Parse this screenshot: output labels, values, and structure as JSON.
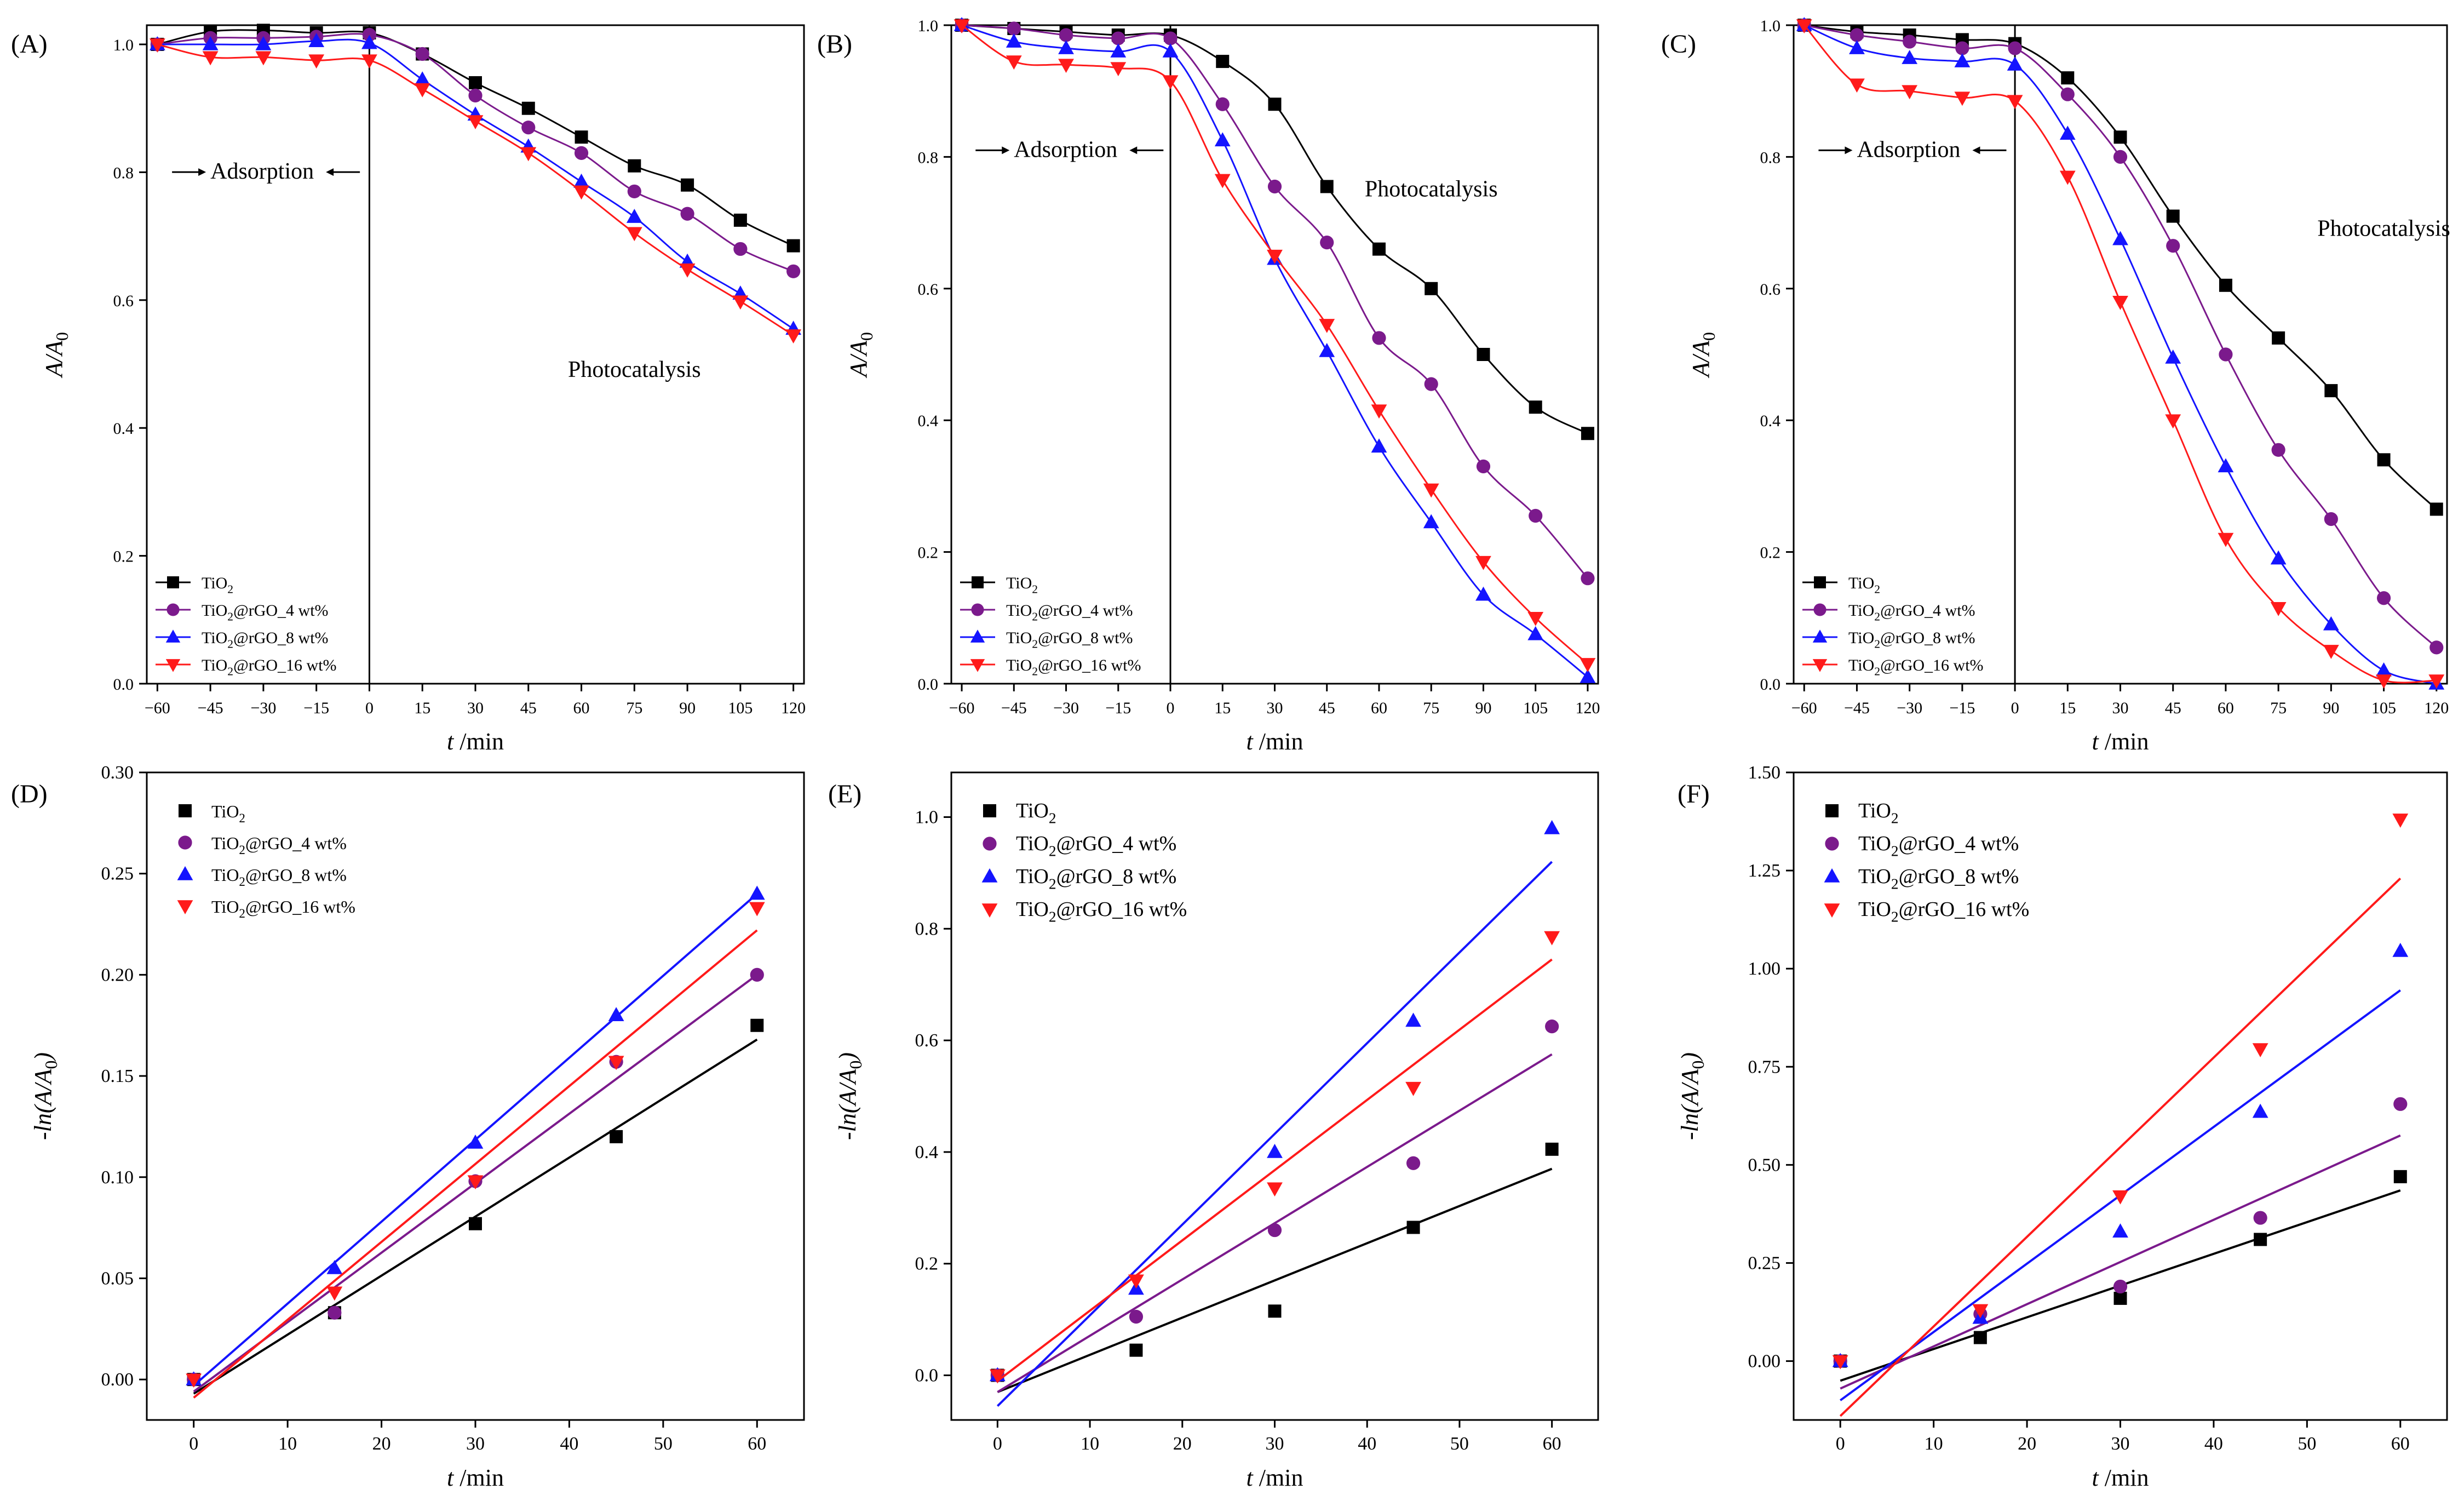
{
  "figure": {
    "series_legend": [
      {
        "name": "TiO2",
        "color": "#000000",
        "marker": "square"
      },
      {
        "name": "TiO2@rGO_4 wt%",
        "color": "#7b1a8c",
        "marker": "circle"
      },
      {
        "name": "TiO2@rGO_8 wt%",
        "color": "#1414ff",
        "marker": "triangle-up"
      },
      {
        "name": "TiO2@rGO_16 wt%",
        "color": "#ff1a1a",
        "marker": "triangle-down"
      }
    ]
  },
  "chart_data": [
    {
      "panel": "(A)",
      "type": "line",
      "xlabel": "t /min",
      "ylabel": "A/A0",
      "xlim": [
        -63,
        123
      ],
      "ylim": [
        0,
        1.03
      ],
      "xticks": [
        -60,
        -45,
        -30,
        -15,
        0,
        15,
        30,
        45,
        60,
        75,
        90,
        105,
        120
      ],
      "yticks": [
        0.0,
        0.2,
        0.4,
        0.6,
        0.8,
        1.0
      ],
      "ytick_labels": [
        "0.0",
        "0.2",
        "0.4",
        "0.6",
        "0.8",
        "1.0"
      ],
      "x": [
        -60,
        -45,
        -30,
        -15,
        0,
        15,
        30,
        45,
        60,
        75,
        90,
        105,
        120
      ],
      "series": [
        {
          "name": "TiO2",
          "values": [
            1.0,
            1.02,
            1.022,
            1.018,
            1.018,
            0.985,
            0.94,
            0.9,
            0.855,
            0.81,
            0.78,
            0.725,
            0.685
          ]
        },
        {
          "name": "TiO2@rGO_4 wt%",
          "values": [
            1.0,
            1.01,
            1.01,
            1.012,
            1.015,
            0.985,
            0.92,
            0.87,
            0.83,
            0.77,
            0.735,
            0.68,
            0.645
          ]
        },
        {
          "name": "TiO2@rGO_8 wt%",
          "values": [
            1.0,
            1.0,
            1.0,
            1.005,
            1.002,
            0.945,
            0.89,
            0.84,
            0.785,
            0.73,
            0.66,
            0.61,
            0.555
          ]
        },
        {
          "name": "TiO2@rGO_16 wt%",
          "values": [
            1.0,
            0.98,
            0.98,
            0.975,
            0.975,
            0.93,
            0.88,
            0.83,
            0.77,
            0.705,
            0.648,
            0.598,
            0.545
          ]
        }
      ],
      "vline_x": 0,
      "annotations": [
        "Adsorption",
        "Photocatalysis"
      ],
      "legend_position": "lower-left"
    },
    {
      "panel": "(B)",
      "type": "line",
      "xlabel": "t /min",
      "ylabel": "A/A0",
      "xlim": [
        -63,
        123
      ],
      "ylim": [
        0,
        1.0
      ],
      "xticks": [
        -60,
        -45,
        -30,
        -15,
        0,
        15,
        30,
        45,
        60,
        75,
        90,
        105,
        120
      ],
      "yticks": [
        0.0,
        0.2,
        0.4,
        0.6,
        0.8,
        1.0
      ],
      "ytick_labels": [
        "0.0",
        "0.2",
        "0.4",
        "0.6",
        "0.8",
        "1.0"
      ],
      "x": [
        -60,
        -45,
        -30,
        -15,
        0,
        15,
        30,
        45,
        60,
        75,
        90,
        105,
        120
      ],
      "series": [
        {
          "name": "TiO2",
          "values": [
            1.0,
            0.995,
            0.99,
            0.985,
            0.985,
            0.945,
            0.88,
            0.755,
            0.66,
            0.6,
            0.5,
            0.42,
            0.38
          ]
        },
        {
          "name": "TiO2@rGO_4 wt%",
          "values": [
            1.0,
            0.995,
            0.985,
            0.98,
            0.98,
            0.88,
            0.755,
            0.67,
            0.525,
            0.455,
            0.33,
            0.255,
            0.16
          ]
        },
        {
          "name": "TiO2@rGO_8 wt%",
          "values": [
            1.0,
            0.975,
            0.965,
            0.96,
            0.96,
            0.825,
            0.645,
            0.505,
            0.36,
            0.245,
            0.135,
            0.075,
            0.01
          ]
        },
        {
          "name": "TiO2@rGO_16 wt%",
          "values": [
            1.0,
            0.945,
            0.94,
            0.935,
            0.915,
            0.765,
            0.65,
            0.545,
            0.415,
            0.295,
            0.185,
            0.1,
            0.03
          ]
        }
      ],
      "vline_x": 0,
      "annotations": [
        "Adsorption",
        "Photocatalysis"
      ],
      "legend_position": "lower-left"
    },
    {
      "panel": "(C)",
      "type": "line",
      "xlabel": "t /min",
      "ylabel": "A/A0",
      "xlim": [
        -63,
        123
      ],
      "ylim": [
        0,
        1.0
      ],
      "xticks": [
        -60,
        -45,
        -30,
        -15,
        0,
        15,
        30,
        45,
        60,
        75,
        90,
        105,
        120
      ],
      "yticks": [
        0.0,
        0.2,
        0.4,
        0.6,
        0.8,
        1.0
      ],
      "ytick_labels": [
        "0.0",
        "0.2",
        "0.4",
        "0.6",
        "0.8",
        "1.0"
      ],
      "x": [
        -60,
        -45,
        -30,
        -15,
        0,
        15,
        30,
        45,
        60,
        75,
        90,
        105,
        120
      ],
      "series": [
        {
          "name": "TiO2",
          "values": [
            1.0,
            0.99,
            0.985,
            0.978,
            0.972,
            0.92,
            0.83,
            0.71,
            0.605,
            0.525,
            0.445,
            0.34,
            0.265
          ]
        },
        {
          "name": "TiO2@rGO_4 wt%",
          "values": [
            1.0,
            0.985,
            0.975,
            0.965,
            0.965,
            0.895,
            0.8,
            0.665,
            0.5,
            0.355,
            0.25,
            0.13,
            0.055
          ]
        },
        {
          "name": "TiO2@rGO_8 wt%",
          "values": [
            1.0,
            0.965,
            0.95,
            0.945,
            0.94,
            0.835,
            0.675,
            0.495,
            0.33,
            0.19,
            0.09,
            0.02,
            0.0
          ]
        },
        {
          "name": "TiO2@rGO_16 wt%",
          "values": [
            1.0,
            0.91,
            0.9,
            0.89,
            0.885,
            0.77,
            0.58,
            0.4,
            0.22,
            0.115,
            0.05,
            0.005,
            0.005
          ]
        }
      ],
      "vline_x": 0,
      "annotations": [
        "Adsorption",
        "Photocatalysis"
      ],
      "legend_position": "lower-left"
    },
    {
      "panel": "(D)",
      "type": "scatter",
      "xlabel": "t /min",
      "ylabel": "-ln(A/A0)",
      "xlim": [
        -5,
        65
      ],
      "ylim": [
        -0.02,
        0.3
      ],
      "xticks": [
        0,
        10,
        20,
        30,
        40,
        50,
        60
      ],
      "yticks": [
        0.0,
        0.05,
        0.1,
        0.15,
        0.2,
        0.25,
        0.3
      ],
      "ytick_labels": [
        "0.00",
        "0.05",
        "0.10",
        "0.15",
        "0.20",
        "0.25",
        "0.30"
      ],
      "x": [
        0,
        15,
        30,
        45,
        60
      ],
      "series": [
        {
          "name": "TiO2",
          "values": [
            0.0,
            0.033,
            0.077,
            0.12,
            0.175
          ],
          "fit": [
            -0.007,
            0.168
          ]
        },
        {
          "name": "TiO2@rGO_4 wt%",
          "values": [
            0.0,
            0.033,
            0.098,
            0.157,
            0.2
          ],
          "fit": [
            -0.006,
            0.2
          ]
        },
        {
          "name": "TiO2@rGO_8 wt%",
          "values": [
            0.0,
            0.055,
            0.117,
            0.18,
            0.24
          ],
          "fit": [
            -0.003,
            0.24
          ]
        },
        {
          "name": "TiO2@rGO_16 wt%",
          "values": [
            0.0,
            0.043,
            0.098,
            0.157,
            0.233
          ],
          "fit": [
            -0.009,
            0.222
          ]
        }
      ],
      "legend_position": "top-left"
    },
    {
      "panel": "(E)",
      "type": "scatter",
      "xlabel": "t /min",
      "ylabel": "-ln(A/A0)",
      "xlim": [
        -5,
        65
      ],
      "ylim": [
        -0.08,
        1.08
      ],
      "xticks": [
        0,
        10,
        20,
        30,
        40,
        50,
        60
      ],
      "yticks": [
        0.0,
        0.2,
        0.4,
        0.6,
        0.8,
        1.0
      ],
      "ytick_labels": [
        "0.0",
        "0.2",
        "0.4",
        "0.6",
        "0.8",
        "1.0"
      ],
      "x": [
        0,
        15,
        30,
        45,
        60
      ],
      "series": [
        {
          "name": "TiO2",
          "values": [
            0.0,
            0.045,
            0.115,
            0.265,
            0.405
          ],
          "fit": [
            -0.03,
            0.37
          ]
        },
        {
          "name": "TiO2@rGO_4 wt%",
          "values": [
            0.0,
            0.105,
            0.26,
            0.38,
            0.625
          ],
          "fit": [
            -0.03,
            0.575
          ]
        },
        {
          "name": "TiO2@rGO_8 wt%",
          "values": [
            0.0,
            0.155,
            0.4,
            0.635,
            0.98
          ],
          "fit": [
            -0.055,
            0.92
          ]
        },
        {
          "name": "TiO2@rGO_16 wt%",
          "values": [
            0.0,
            0.17,
            0.335,
            0.515,
            0.785
          ],
          "fit": [
            -0.01,
            0.745
          ]
        }
      ],
      "legend_position": "top-left"
    },
    {
      "panel": "(F)",
      "type": "scatter",
      "xlabel": "t /min",
      "ylabel": "-ln(A/A0)",
      "xlim": [
        -5,
        65
      ],
      "ylim": [
        -0.15,
        1.5
      ],
      "xticks": [
        0,
        10,
        20,
        30,
        40,
        50,
        60
      ],
      "yticks": [
        0.0,
        0.25,
        0.5,
        0.75,
        1.0,
        1.25,
        1.5
      ],
      "ytick_labels": [
        "0.00",
        "0.25",
        "0.50",
        "0.75",
        "1.00",
        "1.25",
        "1.50"
      ],
      "x": [
        0,
        15,
        30,
        45,
        60
      ],
      "series": [
        {
          "name": "TiO2",
          "values": [
            0.0,
            0.06,
            0.16,
            0.31,
            0.47
          ],
          "fit": [
            -0.05,
            0.435
          ]
        },
        {
          "name": "TiO2@rGO_4 wt%",
          "values": [
            0.0,
            0.12,
            0.19,
            0.365,
            0.655
          ],
          "fit": [
            -0.07,
            0.575
          ]
        },
        {
          "name": "TiO2@rGO_8 wt%",
          "values": [
            0.0,
            0.11,
            0.33,
            0.635,
            1.045
          ],
          "fit": [
            -0.1,
            0.945
          ]
        },
        {
          "name": "TiO2@rGO_16 wt%",
          "values": [
            0.0,
            0.13,
            0.42,
            0.795,
            1.38
          ],
          "fit": [
            -0.14,
            1.23
          ]
        }
      ],
      "legend_position": "top-left"
    }
  ]
}
